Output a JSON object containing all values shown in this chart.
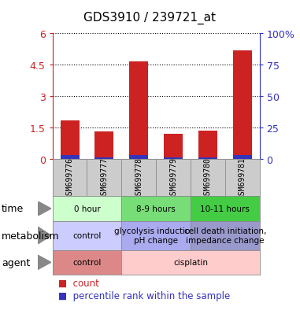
{
  "title": "GDS3910 / 239721_at",
  "samples": [
    "GSM699776",
    "GSM699777",
    "GSM699778",
    "GSM699779",
    "GSM699780",
    "GSM699781"
  ],
  "red_values": [
    1.85,
    1.3,
    4.65,
    1.2,
    1.35,
    5.2
  ],
  "blue_values": [
    0.18,
    0.08,
    0.2,
    0.07,
    0.08,
    0.2
  ],
  "ylim_left": [
    0,
    6
  ],
  "yticks_left": [
    0,
    1.5,
    3,
    4.5,
    6
  ],
  "ytick_labels_left": [
    "0",
    "1.5",
    "3",
    "4.5",
    "6"
  ],
  "ytick_labels_right": [
    "0",
    "25",
    "50",
    "75",
    "100%"
  ],
  "bar_color_red": "#cc2222",
  "bar_color_blue": "#3333bb",
  "annotation_rows": [
    {
      "label": "time",
      "cells": [
        {
          "text": "0 hour",
          "span": [
            0,
            2
          ],
          "color": "#ccffcc"
        },
        {
          "text": "8-9 hours",
          "span": [
            2,
            4
          ],
          "color": "#77dd77"
        },
        {
          "text": "10-11 hours",
          "span": [
            4,
            6
          ],
          "color": "#44cc44"
        }
      ]
    },
    {
      "label": "metabolism",
      "cells": [
        {
          "text": "control",
          "span": [
            0,
            2
          ],
          "color": "#ccccff"
        },
        {
          "text": "glycolysis induction,\npH change",
          "span": [
            2,
            4
          ],
          "color": "#aaaaee"
        },
        {
          "text": "cell death initiation,\nimpedance change",
          "span": [
            4,
            6
          ],
          "color": "#9999cc"
        }
      ]
    },
    {
      "label": "agent",
      "cells": [
        {
          "text": "control",
          "span": [
            0,
            2
          ],
          "color": "#dd8888"
        },
        {
          "text": "cisplatin",
          "span": [
            2,
            6
          ],
          "color": "#ffcccc"
        }
      ]
    }
  ]
}
